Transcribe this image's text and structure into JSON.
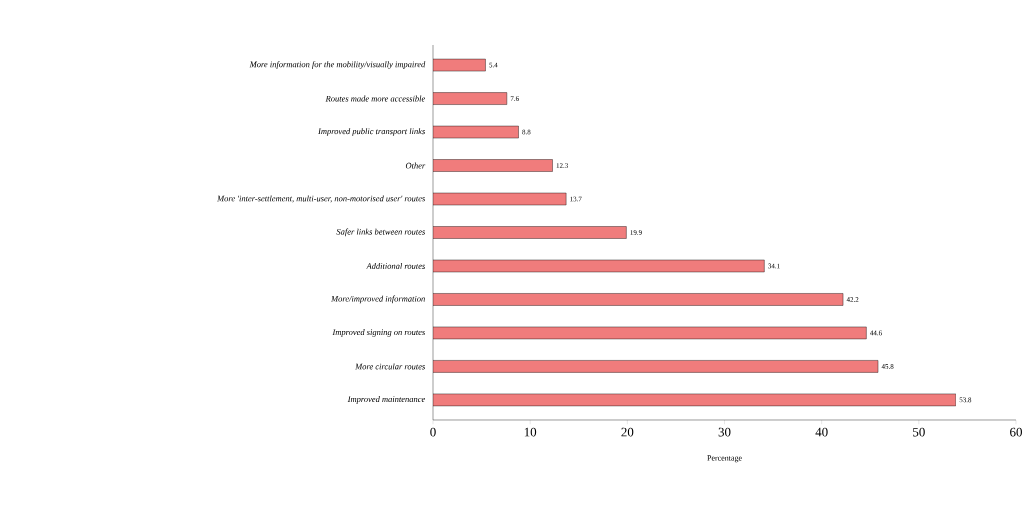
{
  "chart_data": {
    "type": "bar",
    "orientation": "horizontal",
    "xlabel": "Percentage",
    "categories": [
      "More information for the mobility/visually impaired",
      "Routes made more accessible",
      "Improved public transport links",
      "Other",
      "More 'inter-settlement, multi-user, non-motorised user' routes",
      "Safer links between routes",
      "Additional routes",
      "More/improved information",
      "Improved signing on routes",
      "More circular routes",
      "Improved maintenance"
    ],
    "values": [
      5.4,
      7.6,
      8.8,
      12.3,
      13.7,
      19.9,
      34.1,
      42.2,
      44.6,
      45.8,
      53.8
    ],
    "color": "#f07c7c",
    "xlim": [
      0,
      60
    ],
    "xticks": [
      0,
      10,
      20,
      30,
      40,
      50,
      60
    ],
    "data_labels": true
  }
}
